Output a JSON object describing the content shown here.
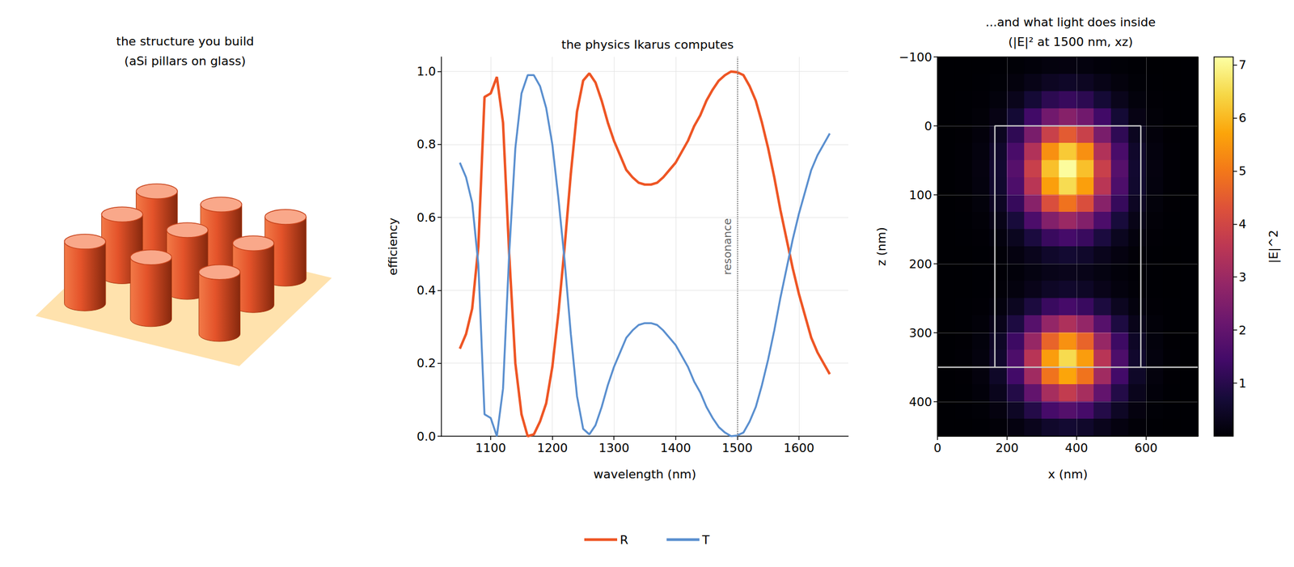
{
  "chart_data": [
    {
      "type": "illustration",
      "title": [
        "the structure you build",
        "(aSi pillars on glass)"
      ]
    },
    {
      "type": "line",
      "title": "the physics Ikarus computes",
      "x_label": "wavelength (nm)",
      "y_label": "efficiency",
      "x": [
        1050,
        1060,
        1070,
        1080,
        1090,
        1100,
        1110,
        1120,
        1130,
        1140,
        1150,
        1160,
        1170,
        1180,
        1190,
        1200,
        1210,
        1220,
        1230,
        1240,
        1250,
        1260,
        1270,
        1280,
        1290,
        1300,
        1310,
        1320,
        1330,
        1340,
        1350,
        1360,
        1370,
        1380,
        1390,
        1400,
        1410,
        1420,
        1430,
        1440,
        1450,
        1460,
        1470,
        1480,
        1490,
        1500,
        1510,
        1520,
        1530,
        1540,
        1550,
        1560,
        1570,
        1580,
        1590,
        1600,
        1610,
        1620,
        1630,
        1640,
        1650
      ],
      "series": [
        {
          "name": "R",
          "color": "#ee5524",
          "values": [
            0.24,
            0.28,
            0.35,
            0.52,
            0.93,
            0.94,
            0.985,
            0.86,
            0.5,
            0.2,
            0.06,
            0,
            0.005,
            0.04,
            0.09,
            0.19,
            0.34,
            0.52,
            0.72,
            0.89,
            0.975,
            0.995,
            0.97,
            0.92,
            0.86,
            0.81,
            0.77,
            0.73,
            0.71,
            0.695,
            0.69,
            0.69,
            0.695,
            0.71,
            0.73,
            0.75,
            0.78,
            0.81,
            0.85,
            0.88,
            0.92,
            0.95,
            0.975,
            0.99,
            1.0,
            0.998,
            0.99,
            0.96,
            0.92,
            0.86,
            0.79,
            0.71,
            0.62,
            0.54,
            0.46,
            0.39,
            0.33,
            0.27,
            0.23,
            0.2,
            0.17
          ]
        },
        {
          "name": "T",
          "color": "#5a8fcf",
          "values": [
            0.75,
            0.71,
            0.64,
            0.47,
            0.06,
            0.05,
            0,
            0.13,
            0.5,
            0.79,
            0.94,
            0.99,
            0.99,
            0.96,
            0.9,
            0.8,
            0.65,
            0.48,
            0.28,
            0.11,
            0.02,
            0.005,
            0.03,
            0.08,
            0.14,
            0.19,
            0.23,
            0.27,
            0.29,
            0.305,
            0.31,
            0.31,
            0.305,
            0.29,
            0.27,
            0.25,
            0.22,
            0.19,
            0.15,
            0.12,
            0.08,
            0.05,
            0.025,
            0.01,
            0,
            0.002,
            0.01,
            0.04,
            0.08,
            0.14,
            0.21,
            0.29,
            0.38,
            0.46,
            0.54,
            0.61,
            0.67,
            0.73,
            0.77,
            0.8,
            0.83
          ]
        }
      ],
      "xlim": [
        1020,
        1680
      ],
      "xticks": [
        1100,
        1200,
        1300,
        1400,
        1500,
        1600
      ],
      "ylim": [
        0,
        1.04
      ],
      "yticks": [
        {
          "value": 0,
          "label": "0.0"
        },
        0.2,
        0.4,
        0.6,
        0.8,
        {
          "value": 1,
          "label": "1.0"
        }
      ],
      "grid": true,
      "legend": "bottom",
      "annotations": [
        {
          "text": "resonance",
          "x": 1500
        }
      ]
    },
    {
      "type": "heatmap",
      "title": [
        "...and what light does inside",
        "(|E|² at 1500 nm, xz)"
      ],
      "x_label": "x (nm)",
      "y_label": "z (nm)",
      "x": [
        25,
        75,
        125,
        175,
        225,
        275,
        325,
        375,
        425,
        475,
        525,
        575,
        625,
        675,
        725
      ],
      "y": [
        -87.5,
        -62.5,
        -37.5,
        -12.5,
        12.5,
        37.5,
        62.5,
        87.5,
        112.5,
        137.5,
        162.5,
        187.5,
        212.5,
        237.5,
        262.5,
        287.5,
        312.5,
        337.5,
        362.5,
        387.5,
        412.5,
        437.5
      ],
      "values": [
        [
          0,
          0,
          0,
          0.01,
          0.04,
          0.08,
          0.13,
          0.15,
          0.13,
          0.08,
          0.04,
          0.01,
          0,
          0,
          0
        ],
        [
          0,
          0,
          0.01,
          0.04,
          0.12,
          0.26,
          0.41,
          0.48,
          0.41,
          0.26,
          0.12,
          0.04,
          0.01,
          0,
          0
        ],
        [
          0,
          0.01,
          0.03,
          0.11,
          0.31,
          0.68,
          1.08,
          1.25,
          1.08,
          0.68,
          0.31,
          0.11,
          0.03,
          0.01,
          0
        ],
        [
          0,
          0.01,
          0.06,
          0.22,
          0.66,
          1.42,
          2.26,
          2.63,
          2.26,
          1.42,
          0.66,
          0.22,
          0.06,
          0.01,
          0
        ],
        [
          0,
          0.02,
          0.09,
          0.38,
          1.12,
          2.41,
          3.84,
          4.47,
          3.84,
          2.41,
          1.12,
          0.38,
          0.09,
          0.02,
          0
        ],
        [
          0,
          0.03,
          0.13,
          0.53,
          1.56,
          3.38,
          5.38,
          6.25,
          5.38,
          3.38,
          1.56,
          0.53,
          0.13,
          0.03,
          0
        ],
        [
          0,
          0.03,
          0.15,
          0.6,
          1.78,
          3.83,
          6.11,
          7.1,
          6.11,
          3.83,
          1.78,
          0.6,
          0.15,
          0.03,
          0
        ],
        [
          0,
          0.03,
          0.14,
          0.56,
          1.63,
          3.53,
          5.62,
          6.53,
          5.62,
          3.53,
          1.63,
          0.56,
          0.14,
          0.03,
          0
        ],
        [
          0,
          0.02,
          0.1,
          0.42,
          1.23,
          2.65,
          4.21,
          4.9,
          4.21,
          2.65,
          1.23,
          0.42,
          0.1,
          0.02,
          0
        ],
        [
          0,
          0.01,
          0.06,
          0.25,
          0.75,
          1.61,
          2.56,
          2.98,
          2.56,
          1.61,
          0.75,
          0.25,
          0.06,
          0.01,
          0
        ],
        [
          0,
          0.01,
          0.03,
          0.13,
          0.37,
          0.8,
          1.28,
          1.49,
          1.28,
          0.8,
          0.37,
          0.13,
          0.03,
          0.01,
          0
        ],
        [
          0,
          0,
          0.01,
          0.05,
          0.16,
          0.33,
          0.53,
          0.62,
          0.53,
          0.33,
          0.16,
          0.05,
          0.01,
          0,
          0
        ],
        [
          0,
          0,
          0.01,
          0.03,
          0.08,
          0.17,
          0.27,
          0.31,
          0.27,
          0.17,
          0.08,
          0.03,
          0.01,
          0,
          0
        ],
        [
          0,
          0,
          0.01,
          0.05,
          0.14,
          0.29,
          0.46,
          0.54,
          0.46,
          0.29,
          0.14,
          0.05,
          0.01,
          0,
          0
        ],
        [
          0,
          0.01,
          0.03,
          0.13,
          0.38,
          0.81,
          1.29,
          1.5,
          1.29,
          0.81,
          0.38,
          0.13,
          0.03,
          0.01,
          0
        ],
        [
          0,
          0.01,
          0.07,
          0.28,
          0.83,
          1.79,
          2.86,
          3.32,
          2.86,
          1.79,
          0.83,
          0.28,
          0.07,
          0.01,
          0
        ],
        [
          0,
          0.02,
          0.11,
          0.46,
          1.35,
          2.92,
          4.64,
          5.4,
          4.64,
          2.92,
          1.35,
          0.46,
          0.11,
          0.02,
          0
        ],
        [
          0,
          0.03,
          0.14,
          0.55,
          1.63,
          3.51,
          5.59,
          6.5,
          5.59,
          3.51,
          1.63,
          0.55,
          0.14,
          0.03,
          0
        ],
        [
          0,
          0.02,
          0.12,
          0.49,
          1.43,
          3.09,
          4.92,
          5.72,
          4.92,
          3.09,
          1.43,
          0.49,
          0.12,
          0.02,
          0
        ],
        [
          0,
          0.01,
          0.08,
          0.32,
          0.93,
          2.0,
          3.19,
          3.71,
          3.19,
          2.0,
          0.93,
          0.32,
          0.08,
          0.01,
          0
        ],
        [
          0,
          0.01,
          0.04,
          0.15,
          0.44,
          0.95,
          1.51,
          1.76,
          1.51,
          0.95,
          0.44,
          0.15,
          0.04,
          0.01,
          0
        ],
        [
          0,
          0,
          0.01,
          0.05,
          0.16,
          0.33,
          0.53,
          0.62,
          0.53,
          0.33,
          0.16,
          0.05,
          0.01,
          0,
          0
        ]
      ],
      "xlim": [
        0,
        750
      ],
      "xticks": [
        0,
        200,
        400,
        600
      ],
      "ylim": [
        450,
        -100
      ],
      "yticks": [
        {
          "value": -100,
          "label": "−100"
        },
        0,
        100,
        200,
        300,
        400
      ],
      "grid": true,
      "color": "inferno",
      "colorbar": {
        "label": "|E|^2",
        "range": [
          0,
          7.15
        ],
        "ticks": [
          1,
          2,
          3,
          4,
          5,
          6,
          7
        ]
      },
      "outline": {
        "pillar_x": [
          165,
          585
        ],
        "pillar_y": [
          0,
          350
        ],
        "substrate_y": 350
      }
    }
  ]
}
